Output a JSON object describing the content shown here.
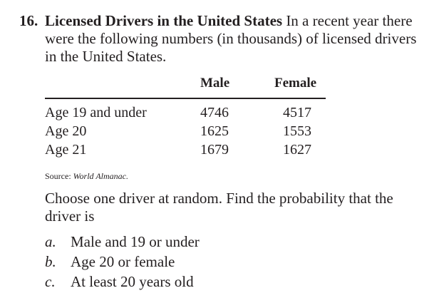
{
  "problem": {
    "number": "16.",
    "title": "Licensed Drivers in the United States",
    "intro": "In a recent year there were the following numbers (in thousands) of licensed drivers in the United States."
  },
  "table": {
    "columns": [
      "Male",
      "Female"
    ],
    "rows": [
      {
        "label": "Age 19 and under",
        "male": "4746",
        "female": "4517"
      },
      {
        "label": "Age 20",
        "male": "1625",
        "female": "1553"
      },
      {
        "label": "Age 21",
        "male": "1679",
        "female": "1627"
      }
    ]
  },
  "source": {
    "prefix": "Source:",
    "work": "World Almanac."
  },
  "question": "Choose one driver at random. Find the probability that the driver is",
  "parts": [
    {
      "letter": "a.",
      "text": "Male and 19 or under"
    },
    {
      "letter": "b.",
      "text": "Age 20 or female"
    },
    {
      "letter": "c.",
      "text": "At least 20 years old"
    }
  ]
}
